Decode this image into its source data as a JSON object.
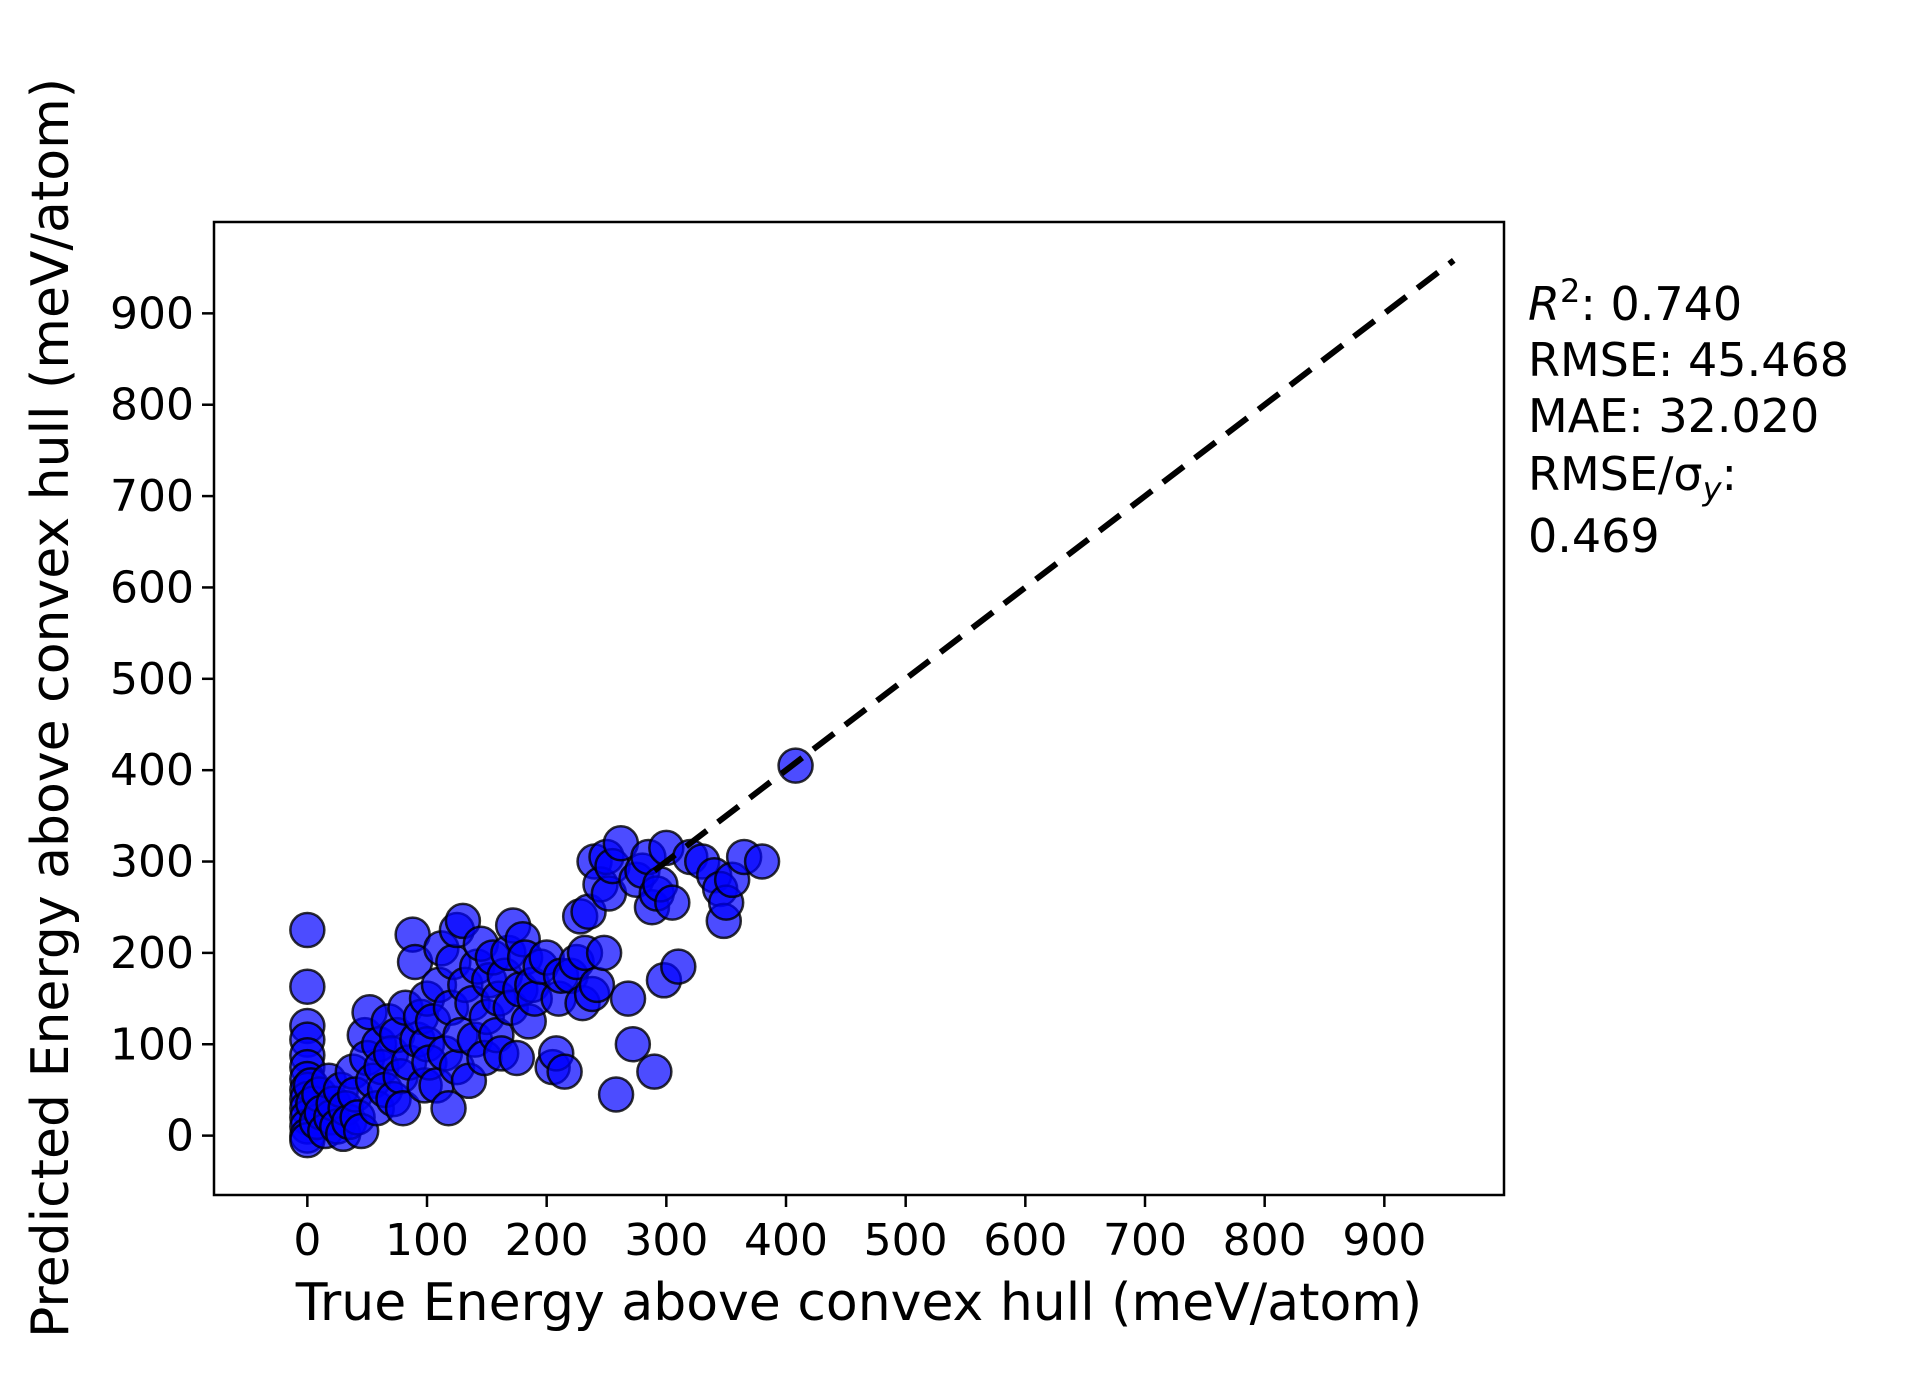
{
  "chart_data": {
    "type": "scatter",
    "xlabel": "True Energy above convex hull (meV/atom)",
    "ylabel": "Predicted Energy above convex hull (meV/atom)",
    "xlim": [
      -78,
      1000
    ],
    "ylim": [
      -65,
      1000
    ],
    "xticks": [
      0,
      100,
      200,
      300,
      400,
      500,
      600,
      700,
      800,
      900
    ],
    "yticks": [
      0,
      100,
      200,
      300,
      400,
      500,
      600,
      700,
      800,
      900
    ],
    "grid": false,
    "legend": "none",
    "marker_color": "#0000ff",
    "marker_edge_color": "#000000",
    "marker_alpha": 0.7,
    "reference_line": {
      "style": "dashed",
      "color": "#000000",
      "from": [
        290,
        290
      ],
      "to": [
        958,
        958
      ]
    },
    "stats": {
      "r2_label": "R",
      "r2_sup": "2",
      "r2_value": ": 0.740",
      "rmse": "RMSE: 45.468",
      "mae": "MAE: 32.020",
      "rmse_sigma_label": "RMSE/σ",
      "rmse_sigma_sub": "y",
      "rmse_sigma_colon": ":",
      "rmse_sigma_value": "0.469"
    },
    "points": [
      [
        0,
        225
      ],
      [
        0,
        163
      ],
      [
        0,
        120
      ],
      [
        0,
        105
      ],
      [
        0,
        88
      ],
      [
        0,
        75
      ],
      [
        0,
        62
      ],
      [
        0,
        50
      ],
      [
        0,
        40
      ],
      [
        0,
        30
      ],
      [
        0,
        20
      ],
      [
        0,
        10
      ],
      [
        0,
        0
      ],
      [
        0,
        -5
      ],
      [
        3,
        55
      ],
      [
        5,
        35
      ],
      [
        8,
        15
      ],
      [
        10,
        45
      ],
      [
        12,
        25
      ],
      [
        15,
        5
      ],
      [
        18,
        60
      ],
      [
        20,
        20
      ],
      [
        22,
        35
      ],
      [
        25,
        10
      ],
      [
        28,
        50
      ],
      [
        30,
        2
      ],
      [
        32,
        30
      ],
      [
        35,
        15
      ],
      [
        38,
        70
      ],
      [
        40,
        45
      ],
      [
        42,
        20
      ],
      [
        45,
        5
      ],
      [
        48,
        110
      ],
      [
        50,
        85
      ],
      [
        52,
        135
      ],
      [
        55,
        60
      ],
      [
        58,
        30
      ],
      [
        60,
        100
      ],
      [
        62,
        75
      ],
      [
        65,
        50
      ],
      [
        68,
        125
      ],
      [
        70,
        90
      ],
      [
        72,
        40
      ],
      [
        75,
        110
      ],
      [
        78,
        65
      ],
      [
        80,
        30
      ],
      [
        82,
        140
      ],
      [
        85,
        80
      ],
      [
        88,
        220
      ],
      [
        90,
        190
      ],
      [
        92,
        105
      ],
      [
        95,
        130
      ],
      [
        98,
        55
      ],
      [
        100,
        100
      ],
      [
        100,
        150
      ],
      [
        102,
        80
      ],
      [
        105,
        125
      ],
      [
        108,
        55
      ],
      [
        110,
        165
      ],
      [
        112,
        205
      ],
      [
        115,
        90
      ],
      [
        118,
        30
      ],
      [
        120,
        140
      ],
      [
        122,
        190
      ],
      [
        125,
        75
      ],
      [
        125,
        225
      ],
      [
        128,
        110
      ],
      [
        130,
        235
      ],
      [
        132,
        165
      ],
      [
        135,
        60
      ],
      [
        138,
        145
      ],
      [
        140,
        105
      ],
      [
        142,
        185
      ],
      [
        145,
        210
      ],
      [
        148,
        85
      ],
      [
        150,
        130
      ],
      [
        152,
        170
      ],
      [
        155,
        195
      ],
      [
        158,
        110
      ],
      [
        160,
        150
      ],
      [
        162,
        90
      ],
      [
        165,
        175
      ],
      [
        168,
        200
      ],
      [
        170,
        140
      ],
      [
        172,
        230
      ],
      [
        175,
        85
      ],
      [
        178,
        160
      ],
      [
        180,
        215
      ],
      [
        182,
        195
      ],
      [
        185,
        125
      ],
      [
        188,
        165
      ],
      [
        190,
        150
      ],
      [
        195,
        185
      ],
      [
        200,
        195
      ],
      [
        205,
        75
      ],
      [
        208,
        90
      ],
      [
        210,
        150
      ],
      [
        212,
        175
      ],
      [
        215,
        70
      ],
      [
        220,
        175
      ],
      [
        225,
        190
      ],
      [
        228,
        240
      ],
      [
        230,
        145
      ],
      [
        232,
        200
      ],
      [
        235,
        245
      ],
      [
        238,
        155
      ],
      [
        240,
        300
      ],
      [
        242,
        165
      ],
      [
        245,
        275
      ],
      [
        248,
        200
      ],
      [
        250,
        305
      ],
      [
        252,
        265
      ],
      [
        255,
        295
      ],
      [
        258,
        45
      ],
      [
        262,
        320
      ],
      [
        268,
        150
      ],
      [
        272,
        100
      ],
      [
        275,
        280
      ],
      [
        280,
        290
      ],
      [
        285,
        305
      ],
      [
        288,
        250
      ],
      [
        290,
        70
      ],
      [
        292,
        265
      ],
      [
        295,
        275
      ],
      [
        298,
        170
      ],
      [
        300,
        315
      ],
      [
        305,
        255
      ],
      [
        310,
        185
      ],
      [
        320,
        305
      ],
      [
        330,
        300
      ],
      [
        340,
        285
      ],
      [
        345,
        270
      ],
      [
        348,
        235
      ],
      [
        350,
        255
      ],
      [
        355,
        280
      ],
      [
        365,
        305
      ],
      [
        380,
        300
      ],
      [
        408,
        405
      ]
    ]
  }
}
